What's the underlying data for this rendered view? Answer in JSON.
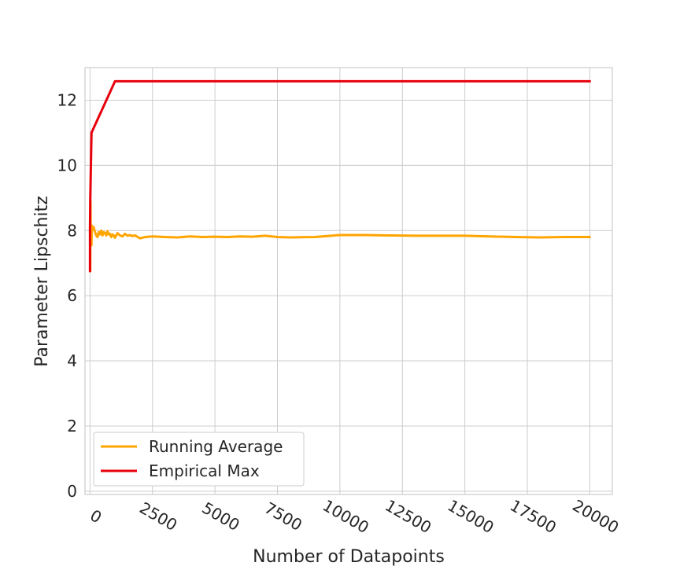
{
  "chart_data": {
    "type": "line",
    "title": "",
    "xlabel": "Number of Datapoints",
    "ylabel": "Parameter Lipschitz",
    "xlim": [
      -200,
      20900
    ],
    "ylim": [
      -0.1,
      13.0
    ],
    "x_ticks": [
      0,
      2500,
      5000,
      7500,
      10000,
      12500,
      15000,
      17500,
      20000
    ],
    "y_ticks": [
      0,
      2,
      4,
      6,
      8,
      10,
      12
    ],
    "grid": true,
    "legend_position": "lower-left",
    "series": [
      {
        "name": "Running Average",
        "color": "#FFA500",
        "x": [
          1,
          10,
          20,
          30,
          40,
          50,
          60,
          70,
          80,
          100,
          120,
          150,
          180,
          200,
          250,
          300,
          350,
          400,
          450,
          500,
          550,
          600,
          650,
          700,
          750,
          800,
          850,
          900,
          950,
          1000,
          1100,
          1200,
          1300,
          1400,
          1500,
          1600,
          1700,
          1800,
          2000,
          2200,
          2500,
          3000,
          3500,
          4000,
          4500,
          5000,
          5500,
          6000,
          6500,
          7000,
          7500,
          8000,
          9000,
          10000,
          11000,
          12000,
          13000,
          14000,
          15000,
          16000,
          17000,
          18000,
          19000,
          20000
        ],
        "y": [
          8.1,
          6.75,
          8.9,
          7.6,
          8.05,
          7.9,
          7.55,
          8.15,
          8.0,
          8.12,
          8.05,
          8.1,
          8.0,
          7.95,
          7.85,
          7.8,
          7.95,
          7.88,
          8.0,
          7.85,
          7.95,
          7.92,
          7.85,
          7.98,
          7.88,
          7.9,
          7.8,
          7.88,
          7.85,
          7.78,
          7.92,
          7.85,
          7.82,
          7.9,
          7.84,
          7.86,
          7.83,
          7.85,
          7.76,
          7.8,
          7.82,
          7.8,
          7.79,
          7.82,
          7.8,
          7.81,
          7.8,
          7.82,
          7.81,
          7.84,
          7.8,
          7.79,
          7.8,
          7.86,
          7.86,
          7.85,
          7.84,
          7.84,
          7.84,
          7.82,
          7.8,
          7.79,
          7.8,
          7.8
        ]
      },
      {
        "name": "Empirical Max",
        "color": "#E8000B",
        "x": [
          0,
          1,
          10,
          60,
          1000,
          20000
        ],
        "y": [
          6.75,
          8.1,
          8.9,
          11.0,
          12.58,
          12.58
        ]
      }
    ]
  }
}
